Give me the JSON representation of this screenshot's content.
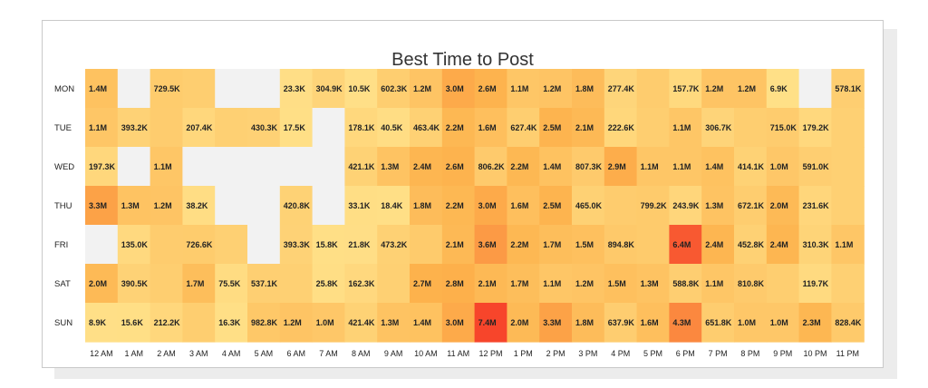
{
  "chart_data": {
    "type": "heatmap",
    "title": "Best Time to Post",
    "x_categories": [
      "12 AM",
      "1 AM",
      "2 AM",
      "3 AM",
      "4 AM",
      "5 AM",
      "6 AM",
      "7 AM",
      "8 AM",
      "9 AM",
      "10 AM",
      "11 AM",
      "12 PM",
      "1 PM",
      "2 PM",
      "3 PM",
      "4 PM",
      "5 PM",
      "6 PM",
      "7 PM",
      "8 PM",
      "9 PM",
      "10 PM",
      "11 PM"
    ],
    "y_categories": [
      "MON",
      "TUE",
      "WED",
      "THU",
      "FRI",
      "SAT",
      "SUN"
    ],
    "labels": [
      [
        "1.4M",
        null,
        "729.5K",
        "",
        null,
        null,
        "23.3K",
        "304.9K",
        "10.5K",
        "602.3K",
        "1.2M",
        "3.0M",
        "2.6M",
        "1.1M",
        "1.2M",
        "1.8M",
        "277.4K",
        "",
        "157.7K",
        "1.2M",
        "1.2M",
        "6.9K",
        null,
        "578.1K"
      ],
      [
        "1.1M",
        "393.2K",
        "",
        "207.4K",
        "",
        "430.3K",
        "17.5K",
        null,
        "178.1K",
        "40.5K",
        "463.4K",
        "2.2M",
        "1.6M",
        "627.4K",
        "2.5M",
        "2.1M",
        "222.6K",
        "",
        "1.1M",
        "306.7K",
        "",
        "715.0K",
        "179.2K",
        ""
      ],
      [
        "197.3K",
        null,
        "1.1M",
        null,
        null,
        null,
        null,
        null,
        "421.1K",
        "1.3M",
        "2.4M",
        "2.6M",
        "806.2K",
        "2.2M",
        "1.4M",
        "807.3K",
        "2.9M",
        "1.1M",
        "1.1M",
        "1.4M",
        "414.1K",
        "1.0M",
        "591.0K",
        ""
      ],
      [
        "3.3M",
        "1.3M",
        "1.2M",
        "38.2K",
        null,
        null,
        "420.8K",
        null,
        "33.1K",
        "18.4K",
        "1.8M",
        "2.2M",
        "3.0M",
        "1.6M",
        "2.5M",
        "465.0K",
        "",
        "799.2K",
        "243.9K",
        "1.3M",
        "672.1K",
        "2.0M",
        "231.6K",
        ""
      ],
      [
        null,
        "135.0K",
        "",
        "726.6K",
        "",
        null,
        "393.3K",
        "15.8K",
        "21.8K",
        "473.2K",
        "",
        "2.1M",
        "3.6M",
        "2.2M",
        "1.7M",
        "1.5M",
        "894.8K",
        "",
        "6.4M",
        "2.4M",
        "452.8K",
        "2.4M",
        "310.3K",
        "1.1M"
      ],
      [
        "2.0M",
        "390.5K",
        "",
        "1.7M",
        "75.5K",
        "537.1K",
        "",
        "25.8K",
        "162.3K",
        "",
        "2.7M",
        "2.8M",
        "2.1M",
        "1.7M",
        "1.1M",
        "1.2M",
        "1.5M",
        "1.3M",
        "588.8K",
        "1.1M",
        "810.8K",
        "",
        "119.7K",
        ""
      ],
      [
        "8.9K",
        "15.6K",
        "212.2K",
        "",
        "16.3K",
        "982.8K",
        "1.2M",
        "1.0M",
        "421.4K",
        "1.3M",
        "1.4M",
        "3.0M",
        "7.4M",
        "2.0M",
        "3.3M",
        "1.8M",
        "637.9K",
        "1.6M",
        "4.3M",
        "651.8K",
        "1.0M",
        "1.0M",
        "2.3M",
        "828.4K"
      ]
    ],
    "values": [
      [
        1400000,
        null,
        729500,
        600000,
        null,
        null,
        23300,
        304900,
        10500,
        602300,
        1200000,
        3000000,
        2600000,
        1100000,
        1200000,
        1800000,
        277400,
        700000,
        157700,
        1200000,
        1200000,
        6900,
        null,
        578100
      ],
      [
        1100000,
        393200,
        700000,
        207400,
        500000,
        430300,
        17500,
        null,
        178100,
        40500,
        463400,
        2200000,
        1600000,
        627400,
        2500000,
        2100000,
        222600,
        600000,
        1100000,
        306700,
        600000,
        715000,
        179200,
        500000
      ],
      [
        197300,
        null,
        1100000,
        null,
        null,
        null,
        null,
        null,
        421100,
        1300000,
        2400000,
        2600000,
        806200,
        2200000,
        1400000,
        807300,
        2900000,
        1100000,
        1100000,
        1400000,
        414100,
        1000000,
        591000,
        500000
      ],
      [
        3300000,
        1300000,
        1200000,
        38200,
        null,
        null,
        420800,
        null,
        33100,
        18400,
        1800000,
        2200000,
        3000000,
        1600000,
        2500000,
        465000,
        700000,
        799200,
        243900,
        1300000,
        672100,
        2000000,
        231600,
        500000
      ],
      [
        null,
        135000,
        700000,
        726600,
        500000,
        null,
        393300,
        15800,
        21800,
        473200,
        800000,
        2100000,
        3600000,
        2200000,
        1700000,
        1500000,
        894800,
        800000,
        6400000,
        2400000,
        452800,
        2400000,
        310300,
        1100000
      ],
      [
        2000000,
        390500,
        600000,
        1700000,
        75500,
        537100,
        500000,
        25800,
        162300,
        500000,
        2700000,
        2800000,
        2100000,
        1700000,
        1100000,
        1200000,
        1500000,
        1300000,
        588800,
        1100000,
        810800,
        600000,
        119700,
        500000
      ],
      [
        8900,
        15600,
        212200,
        600000,
        16300,
        982800,
        1200000,
        1000000,
        421400,
        1300000,
        1400000,
        3000000,
        7400000,
        2000000,
        3300000,
        1800000,
        637900,
        1600000,
        4300000,
        651800,
        1000000,
        1000000,
        2300000,
        828400
      ]
    ],
    "colors": {
      "empty": "#f2f2f2",
      "low": "#ffe189",
      "mid": "#fdb24c",
      "high": "#f7452b"
    }
  }
}
